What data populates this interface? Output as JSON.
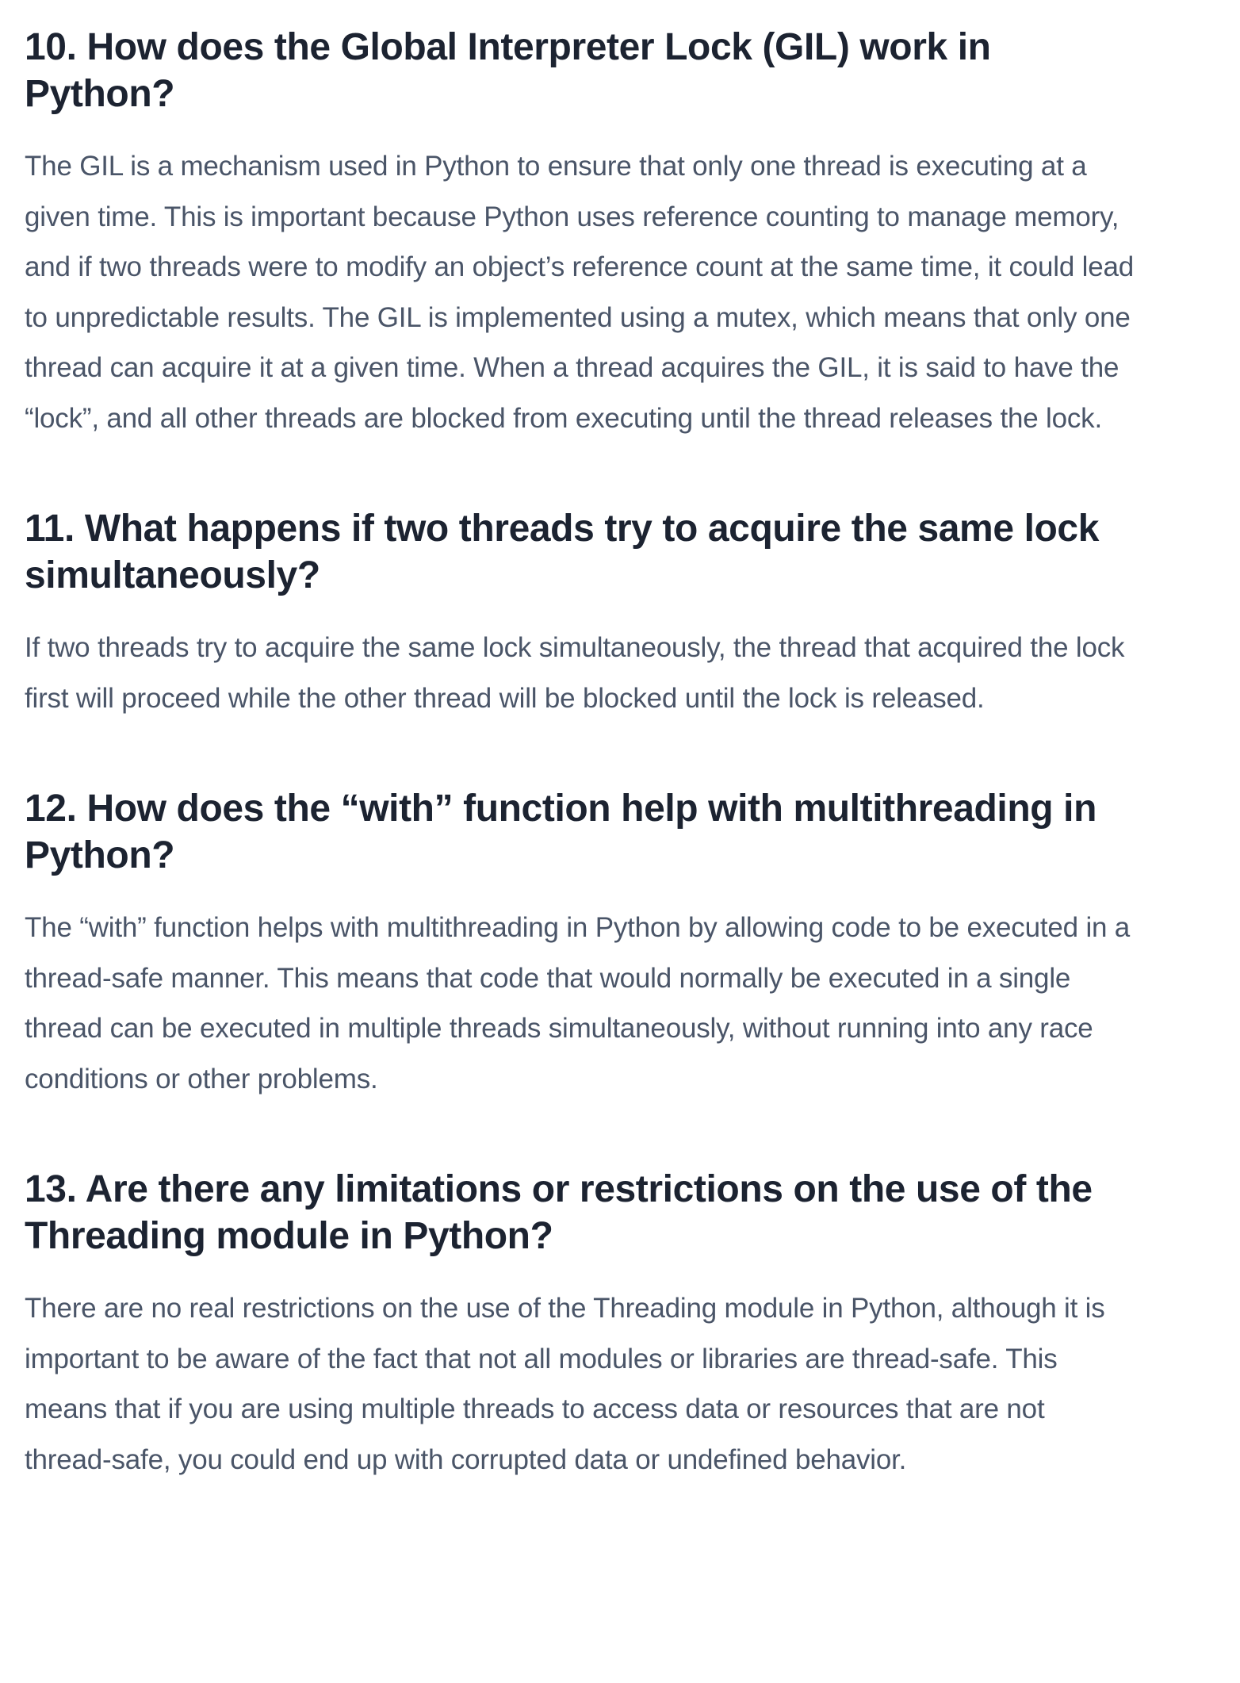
{
  "sections": [
    {
      "heading": "10. How does the Global Interpreter Lock (GIL) work in Python?",
      "body": "The GIL is a mechanism used in Python to ensure that only one thread is executing at a given time. This is important because Python uses reference counting to manage memory, and if two threads were to modify an object’s reference count at the same time, it could lead to unpredictable results. The GIL is implemented using a mutex, which means that only one thread can acquire it at a given time. When a thread acquires the GIL, it is said to have the “lock”, and all other threads are blocked from executing until the thread releases the lock."
    },
    {
      "heading": "11. What happens if two threads try to acquire the same lock simultaneously?",
      "body": "If two threads try to acquire the same lock simultaneously, the thread that acquired the lock first will proceed while the other thread will be blocked until the lock is released."
    },
    {
      "heading": "12. How does the “with” function help with multithreading in Python?",
      "body": "The “with” function helps with multithreading in Python by allowing code to be executed in a thread-safe manner. This means that code that would normally be executed in a single thread can be executed in multiple threads simultaneously, without running into any race conditions or other problems."
    },
    {
      "heading": "13. Are there any limitations or restrictions on the use of the Threading module in Python?",
      "body": "There are no real restrictions on the use of the Threading module in Python, although it is important to be aware of the fact that not all modules or libraries are thread-safe. This means that if you are using multiple threads to access data or resources that are not thread-safe, you could end up with corrupted data or undefined behavior."
    }
  ]
}
